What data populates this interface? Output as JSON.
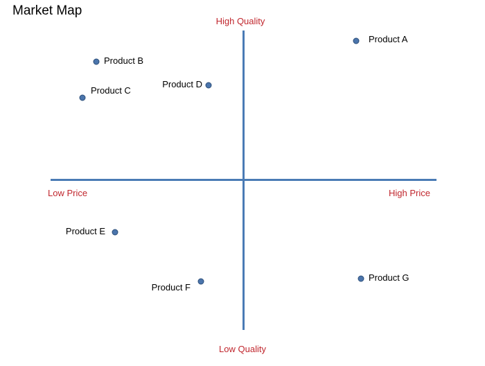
{
  "title": "Market Map",
  "axes": {
    "top_label": "High Quality",
    "bottom_label": "Low Quality",
    "left_label": "Low Price",
    "right_label": "High Price"
  },
  "colors": {
    "axis_line": "#4a7bb5",
    "axis_label": "#c0262d",
    "marker_fill": "#4b75ac",
    "marker_border": "#2c4e78"
  },
  "products": [
    {
      "name": "Product A"
    },
    {
      "name": "Product B"
    },
    {
      "name": "Product C"
    },
    {
      "name": "Product D"
    },
    {
      "name": "Product E"
    },
    {
      "name": "Product F"
    },
    {
      "name": "Product G"
    }
  ]
}
